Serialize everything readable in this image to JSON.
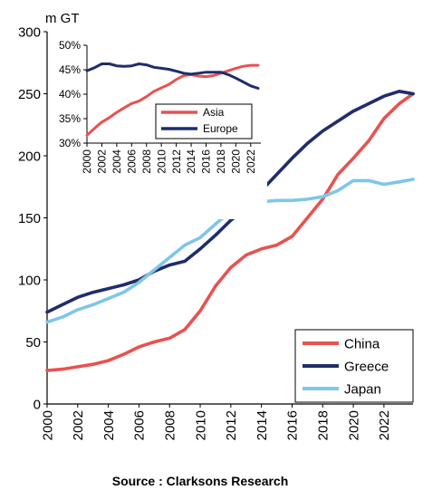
{
  "chart_data": [
    {
      "type": "line",
      "title": "",
      "unit_label": "m GT",
      "xlabel": "",
      "ylabel": "",
      "xlim": [
        2000,
        2023.9
      ],
      "ylim": [
        0,
        300
      ],
      "x_ticks": [
        "2000",
        "2002",
        "2004",
        "2006",
        "2008",
        "2010",
        "2012",
        "2014",
        "2016",
        "2018",
        "2020",
        "2022"
      ],
      "y_ticks": [
        "0",
        "50",
        "100",
        "150",
        "200",
        "250",
        "300"
      ],
      "legend_position": "bottom-right",
      "grid": false,
      "series": [
        {
          "name": "China",
          "color": "#e8524f",
          "x": [
            2000,
            2001,
            2002,
            2003,
            2004,
            2005,
            2006,
            2007,
            2008,
            2009,
            2010,
            2011,
            2012,
            2013,
            2014,
            2015,
            2016,
            2017,
            2018,
            2019,
            2020,
            2021,
            2022,
            2023,
            2023.9
          ],
          "y": [
            27,
            28,
            30,
            32,
            35,
            40,
            46,
            50,
            53,
            60,
            75,
            95,
            110,
            120,
            125,
            128,
            135,
            150,
            165,
            185,
            198,
            212,
            230,
            242,
            250
          ]
        },
        {
          "name": "Greece",
          "color": "#1f2d6b",
          "x": [
            2000,
            2001,
            2002,
            2003,
            2004,
            2005,
            2006,
            2007,
            2008,
            2009,
            2010,
            2011,
            2012,
            2013,
            2014,
            2015,
            2016,
            2017,
            2018,
            2019,
            2020,
            2021,
            2022,
            2023,
            2023.9
          ],
          "y": [
            74,
            80,
            86,
            90,
            93,
            96,
            100,
            107,
            112,
            115,
            125,
            136,
            148,
            157,
            172,
            185,
            198,
            210,
            220,
            228,
            236,
            242,
            248,
            252,
            250
          ]
        },
        {
          "name": "Japan",
          "color": "#7fc6e8",
          "x": [
            2000,
            2001,
            2002,
            2003,
            2004,
            2005,
            2006,
            2007,
            2008,
            2009,
            2010,
            2011,
            2012,
            2013,
            2014,
            2015,
            2016,
            2017,
            2018,
            2019,
            2020,
            2021,
            2022,
            2023,
            2023.9
          ],
          "y": [
            66,
            70,
            76,
            80,
            85,
            90,
            98,
            108,
            118,
            128,
            134,
            145,
            155,
            160,
            163,
            164,
            164,
            165,
            167,
            172,
            180,
            180,
            177,
            179,
            181
          ]
        }
      ]
    },
    {
      "type": "line",
      "title": "",
      "xlabel": "",
      "ylabel": "",
      "xlim": [
        2000,
        2023
      ],
      "ylim": [
        30,
        50
      ],
      "x_ticks": [
        "2000",
        "2002",
        "2004",
        "2006",
        "2008",
        "2010",
        "2012",
        "2014",
        "2016",
        "2018",
        "2020",
        "2022"
      ],
      "y_ticks": [
        "30%",
        "35%",
        "40%",
        "45%",
        "50%"
      ],
      "legend_position": "bottom-center",
      "grid": false,
      "series": [
        {
          "name": "Asia",
          "color": "#e8524f",
          "x": [
            2000,
            2001,
            2002,
            2003,
            2004,
            2005,
            2006,
            2007,
            2008,
            2009,
            2010,
            2011,
            2012,
            2013,
            2014,
            2015,
            2016,
            2017,
            2018,
            2019,
            2020,
            2021,
            2022,
            2023
          ],
          "y": [
            31.6,
            33,
            34.3,
            35.2,
            36.3,
            37.2,
            38.1,
            38.6,
            39.5,
            40.6,
            41.3,
            42,
            43,
            43.8,
            44,
            43.7,
            43.6,
            43.8,
            44.3,
            44.8,
            45.3,
            45.7,
            45.9,
            45.9
          ]
        },
        {
          "name": "Europe",
          "color": "#1f2d6b",
          "x": [
            2000,
            2001,
            2002,
            2003,
            2004,
            2005,
            2006,
            2007,
            2008,
            2009,
            2010,
            2011,
            2012,
            2013,
            2014,
            2015,
            2016,
            2017,
            2018,
            2019,
            2020,
            2021,
            2022,
            2023
          ],
          "y": [
            44.8,
            45.4,
            46.2,
            46.2,
            45.8,
            45.7,
            45.8,
            46.2,
            46,
            45.5,
            45.3,
            45.1,
            44.7,
            44.3,
            44.1,
            44.3,
            44.5,
            44.5,
            44.5,
            44,
            43.3,
            42.5,
            41.7,
            41.2
          ]
        }
      ]
    }
  ],
  "source": "Source : Clarksons Research"
}
